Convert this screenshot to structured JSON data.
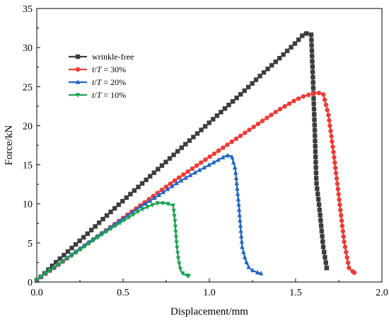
{
  "chart_data": {
    "type": "line",
    "xlabel": "Displacement/mm",
    "ylabel": "Force/kN",
    "xlim": [
      0.0,
      2.0
    ],
    "ylim": [
      0,
      35
    ],
    "x_ticks": [
      "0.0",
      "0.5",
      "1.0",
      "1.5",
      "2.0"
    ],
    "y_ticks": [
      "0",
      "5",
      "10",
      "15",
      "20",
      "25",
      "30",
      "35"
    ],
    "grid": false,
    "legend_position": "upper-left",
    "series": [
      {
        "name": "wrinkle-free",
        "legend_parts": [
          {
            "text": "wrinkle-free",
            "italic": false
          }
        ],
        "color": "#3d3d3d",
        "marker": "square",
        "x": [
          0.0,
          0.05,
          0.1,
          0.2,
          0.3,
          0.4,
          0.5,
          0.6,
          0.7,
          0.8,
          0.9,
          1.0,
          1.1,
          1.2,
          1.3,
          1.4,
          1.5,
          1.55,
          1.58,
          1.59,
          1.6,
          1.61,
          1.62,
          1.64,
          1.66,
          1.68
        ],
        "y": [
          0.2,
          1.2,
          2.3,
          4.3,
          6.3,
          8.4,
          10.4,
          12.4,
          14.4,
          16.4,
          18.4,
          20.4,
          22.4,
          24.4,
          26.5,
          28.5,
          30.6,
          31.8,
          31.8,
          31.7,
          26.2,
          20.0,
          12.8,
          9.0,
          4.5,
          1.8
        ]
      },
      {
        "name": "t/T = 30%",
        "legend_parts": [
          {
            "text": "t",
            "italic": true
          },
          {
            "text": "/",
            "italic": false
          },
          {
            "text": "T",
            "italic": true
          },
          {
            "text": " = 30%",
            "italic": false
          }
        ],
        "color": "#ef3b36",
        "marker": "circle",
        "x": [
          0.0,
          0.1,
          0.2,
          0.3,
          0.4,
          0.5,
          0.6,
          0.7,
          0.8,
          0.9,
          1.0,
          1.1,
          1.2,
          1.3,
          1.4,
          1.5,
          1.55,
          1.6,
          1.63,
          1.66,
          1.69,
          1.72,
          1.75,
          1.78,
          1.81,
          1.84
        ],
        "y": [
          0.3,
          1.8,
          3.4,
          5.0,
          6.6,
          8.2,
          9.8,
          11.4,
          13.0,
          14.5,
          16.0,
          17.5,
          19.0,
          20.5,
          22.0,
          23.3,
          23.8,
          24.1,
          24.2,
          24.1,
          21.4,
          16.5,
          11.0,
          5.3,
          1.7,
          1.2
        ]
      },
      {
        "name": "t/T = 20%",
        "legend_parts": [
          {
            "text": "t",
            "italic": true
          },
          {
            "text": "/",
            "italic": false
          },
          {
            "text": "T",
            "italic": true
          },
          {
            "text": " = 20%",
            "italic": false
          }
        ],
        "color": "#1f64c8",
        "marker": "triangle-up",
        "x": [
          0.0,
          0.1,
          0.2,
          0.3,
          0.4,
          0.5,
          0.6,
          0.7,
          0.8,
          0.9,
          1.0,
          1.05,
          1.1,
          1.13,
          1.15,
          1.17,
          1.19,
          1.21,
          1.23,
          1.25,
          1.28,
          1.3
        ],
        "y": [
          0.3,
          1.9,
          3.5,
          5.1,
          6.6,
          8.1,
          9.6,
          11.0,
          12.5,
          13.8,
          15.0,
          15.6,
          16.2,
          16.1,
          14.5,
          10.0,
          4.5,
          2.8,
          1.8,
          1.5,
          1.2,
          1.1
        ]
      },
      {
        "name": "t/T = 10%",
        "legend_parts": [
          {
            "text": "t",
            "italic": true
          },
          {
            "text": "/",
            "italic": false
          },
          {
            "text": "T",
            "italic": true
          },
          {
            "text": " = 10%",
            "italic": false
          }
        ],
        "color": "#1aa251",
        "marker": "triangle-down",
        "x": [
          0.0,
          0.1,
          0.2,
          0.3,
          0.4,
          0.5,
          0.6,
          0.65,
          0.7,
          0.73,
          0.76,
          0.79,
          0.8,
          0.81,
          0.82,
          0.83,
          0.84,
          0.86,
          0.88
        ],
        "y": [
          0.3,
          1.9,
          3.4,
          4.9,
          6.4,
          7.8,
          9.2,
          9.7,
          10.1,
          10.1,
          10.0,
          9.8,
          8.0,
          5.0,
          3.0,
          1.8,
          1.2,
          0.9,
          0.8
        ]
      }
    ]
  }
}
